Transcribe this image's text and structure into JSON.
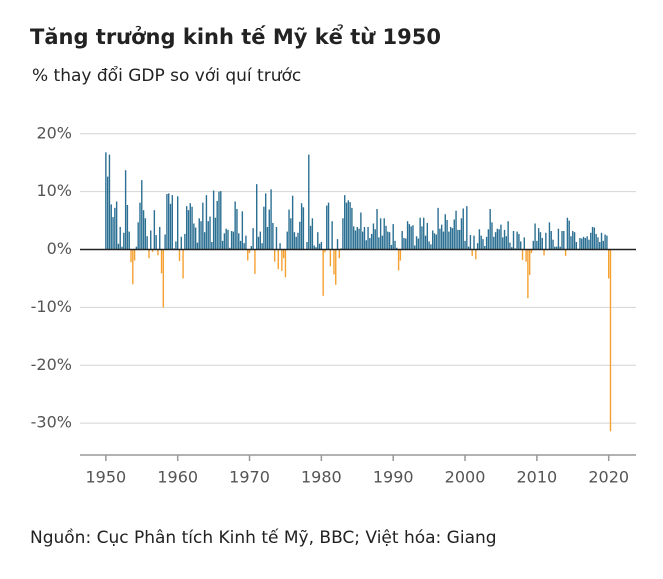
{
  "chart_data": {
    "type": "bar",
    "title": "Tăng trưởng kinh tế Mỹ kể từ 1950",
    "subtitle": "% thay đổi GDP so với quí trước",
    "source": "Nguồn: Cục Phân tích Kinh tế Mỹ, BBC; Việt hóa: Giang",
    "color": "#2b6f92",
    "negative_color": "#f5a132",
    "grid": true,
    "xlim": [
      1946.4,
      2023.8
    ],
    "xticks": [
      1950,
      1960,
      1970,
      1980,
      1990,
      2000,
      2010,
      2020
    ],
    "ylim": [
      -35.5,
      21
    ],
    "yticks": [
      {
        "value": 20,
        "label": "20%"
      },
      {
        "value": 10,
        "label": "10%"
      },
      {
        "value": 0,
        "label": "0%"
      },
      {
        "value": -10,
        "label": "-10%"
      },
      {
        "value": -20,
        "label": "-20%"
      },
      {
        "value": -30,
        "label": "-30%"
      }
    ],
    "x": [
      1950,
      1950.25,
      1950.5,
      1950.75,
      1951,
      1951.25,
      1951.5,
      1951.75,
      1952,
      1952.25,
      1952.5,
      1952.75,
      1953,
      1953.25,
      1953.5,
      1953.75,
      1954,
      1954.25,
      1954.5,
      1954.75,
      1955,
      1955.25,
      1955.5,
      1955.75,
      1956,
      1956.25,
      1956.5,
      1956.75,
      1957,
      1957.25,
      1957.5,
      1957.75,
      1958,
      1958.25,
      1958.5,
      1958.75,
      1959,
      1959.25,
      1959.5,
      1959.75,
      1960,
      1960.25,
      1960.5,
      1960.75,
      1961,
      1961.25,
      1961.5,
      1961.75,
      1962,
      1962.25,
      1962.5,
      1962.75,
      1963,
      1963.25,
      1963.5,
      1963.75,
      1964,
      1964.25,
      1964.5,
      1964.75,
      1965,
      1965.25,
      1965.5,
      1965.75,
      1966,
      1966.25,
      1966.5,
      1966.75,
      1967,
      1967.25,
      1967.5,
      1967.75,
      1968,
      1968.25,
      1968.5,
      1968.75,
      1969,
      1969.25,
      1969.5,
      1969.75,
      1970,
      1970.25,
      1970.5,
      1970.75,
      1971,
      1971.25,
      1971.5,
      1971.75,
      1972,
      1972.25,
      1972.5,
      1972.75,
      1973,
      1973.25,
      1973.5,
      1973.75,
      1974,
      1974.25,
      1974.5,
      1974.75,
      1975,
      1975.25,
      1975.5,
      1975.75,
      1976,
      1976.25,
      1976.5,
      1976.75,
      1977,
      1977.25,
      1977.5,
      1977.75,
      1978,
      1978.25,
      1978.5,
      1978.75,
      1979,
      1979.25,
      1979.5,
      1979.75,
      1980,
      1980.25,
      1980.5,
      1980.75,
      1981,
      1981.25,
      1981.5,
      1981.75,
      1982,
      1982.25,
      1982.5,
      1982.75,
      1983,
      1983.25,
      1983.5,
      1983.75,
      1984,
      1984.25,
      1984.5,
      1984.75,
      1985,
      1985.25,
      1985.5,
      1985.75,
      1986,
      1986.25,
      1986.5,
      1986.75,
      1987,
      1987.25,
      1987.5,
      1987.75,
      1988,
      1988.25,
      1988.5,
      1988.75,
      1989,
      1989.25,
      1989.5,
      1989.75,
      1990,
      1990.25,
      1990.5,
      1990.75,
      1991,
      1991.25,
      1991.5,
      1991.75,
      1992,
      1992.25,
      1992.5,
      1992.75,
      1993,
      1993.25,
      1993.5,
      1993.75,
      1994,
      1994.25,
      1994.5,
      1994.75,
      1995,
      1995.25,
      1995.5,
      1995.75,
      1996,
      1996.25,
      1996.5,
      1996.75,
      1997,
      1997.25,
      1997.5,
      1997.75,
      1998,
      1998.25,
      1998.5,
      1998.75,
      1999,
      1999.25,
      1999.5,
      1999.75,
      2000,
      2000.25,
      2000.5,
      2000.75,
      2001,
      2001.25,
      2001.5,
      2001.75,
      2002,
      2002.25,
      2002.5,
      2002.75,
      2003,
      2003.25,
      2003.5,
      2003.75,
      2004,
      2004.25,
      2004.5,
      2004.75,
      2005,
      2005.25,
      2005.5,
      2005.75,
      2006,
      2006.25,
      2006.5,
      2006.75,
      2007,
      2007.25,
      2007.5,
      2007.75,
      2008,
      2008.25,
      2008.5,
      2008.75,
      2009,
      2009.25,
      2009.5,
      2009.75,
      2010,
      2010.25,
      2010.5,
      2010.75,
      2011,
      2011.25,
      2011.5,
      2011.75,
      2012,
      2012.25,
      2012.5,
      2012.75,
      2013,
      2013.25,
      2013.5,
      2013.75,
      2014,
      2014.25,
      2014.5,
      2014.75,
      2015,
      2015.25,
      2015.5,
      2015.75,
      2016,
      2016.25,
      2016.5,
      2016.75,
      2017,
      2017.25,
      2017.5,
      2017.75,
      2018,
      2018.25,
      2018.5,
      2018.75,
      2019,
      2019.25,
      2019.5,
      2019.75,
      2020,
      2020.25
    ],
    "values": [
      16.8,
      12.6,
      16.4,
      7.8,
      5.6,
      7.2,
      8.3,
      1.0,
      3.9,
      0.5,
      2.9,
      13.7,
      7.7,
      3.1,
      -2.2,
      -6.0,
      -1.9,
      0.5,
      4.7,
      8.1,
      12.0,
      6.8,
      5.4,
      2.3,
      -1.5,
      3.3,
      -0.4,
      6.8,
      2.5,
      -1.0,
      3.9,
      -4.1,
      -10.0,
      2.6,
      9.6,
      9.7,
      7.9,
      9.4,
      0.2,
      1.4,
      9.2,
      -2.0,
      2.2,
      -5.0,
      2.7,
      7.5,
      6.8,
      8.0,
      7.4,
      4.5,
      3.8,
      1.2,
      5.4,
      4.9,
      8.1,
      3.0,
      9.4,
      4.9,
      5.7,
      1.3,
      10.2,
      5.5,
      8.4,
      10.0,
      10.1,
      1.5,
      2.8,
      3.6,
      3.4,
      0.3,
      3.2,
      3.1,
      8.3,
      7.0,
      2.8,
      1.5,
      6.6,
      1.1,
      2.4,
      -1.9,
      -0.6,
      0.6,
      3.7,
      -4.2,
      11.3,
      2.2,
      3.1,
      1.1,
      7.4,
      9.7,
      3.9,
      6.9,
      10.4,
      4.6,
      -2.1,
      3.9,
      -3.4,
      1.1,
      -3.7,
      -1.5,
      -4.8,
      3.1,
      6.9,
      5.4,
      9.3,
      3.0,
      2.2,
      2.9,
      4.8,
      8.0,
      7.3,
      0.0,
      1.3,
      16.4,
      4.1,
      5.4,
      0.7,
      0.4,
      3.0,
      1.0,
      1.3,
      -8.0,
      -0.5,
      7.6,
      8.1,
      -2.9,
      4.9,
      -4.3,
      -6.1,
      1.8,
      -1.5,
      0.2,
      5.4,
      9.4,
      8.1,
      8.5,
      8.2,
      7.2,
      4.0,
      3.3,
      3.9,
      3.6,
      6.4,
      3.1,
      3.9,
      1.6,
      3.9,
      2.0,
      2.7,
      4.5,
      3.5,
      7.0,
      2.1,
      5.4,
      2.4,
      5.4,
      4.1,
      3.1,
      3.0,
      0.8,
      4.4,
      1.5,
      0.3,
      -3.6,
      -1.9,
      3.2,
      2.0,
      1.9,
      4.9,
      4.4,
      4.0,
      4.2,
      0.7,
      2.3,
      1.9,
      5.5,
      4.0,
      5.5,
      2.4,
      4.6,
      1.4,
      0.9,
      3.3,
      2.8,
      2.6,
      7.2,
      3.6,
      4.3,
      3.1,
      6.1,
      5.1,
      3.1,
      3.9,
      3.7,
      5.2,
      6.7,
      3.4,
      3.4,
      5.4,
      7.1,
      1.5,
      7.5,
      0.5,
      2.5,
      -1.1,
      2.4,
      -1.7,
      1.1,
      3.5,
      2.4,
      1.8,
      0.6,
      2.2,
      3.5,
      7.0,
      4.7,
      2.2,
      3.0,
      3.6,
      3.5,
      4.3,
      2.1,
      3.4,
      2.3,
      4.9,
      1.2,
      0.4,
      3.2,
      0.2,
      3.1,
      2.7,
      1.4,
      -1.8,
      2.1,
      -2.1,
      -8.4,
      -4.4,
      -0.6,
      1.5,
      4.5,
      1.5,
      3.7,
      3.0,
      2.0,
      -1.0,
      2.9,
      -0.1,
      4.7,
      3.2,
      1.7,
      0.5,
      0.5,
      3.6,
      0.5,
      3.2,
      3.2,
      -1.1,
      5.5,
      5.0,
      2.3,
      3.2,
      3.0,
      1.3,
      0.1,
      2.0,
      1.9,
      2.2,
      2.0,
      2.3,
      1.7,
      2.9,
      3.9,
      3.8,
      2.7,
      2.1,
      1.3,
      2.9,
      1.5,
      2.6,
      2.4,
      -5.0,
      -31.4
    ]
  }
}
